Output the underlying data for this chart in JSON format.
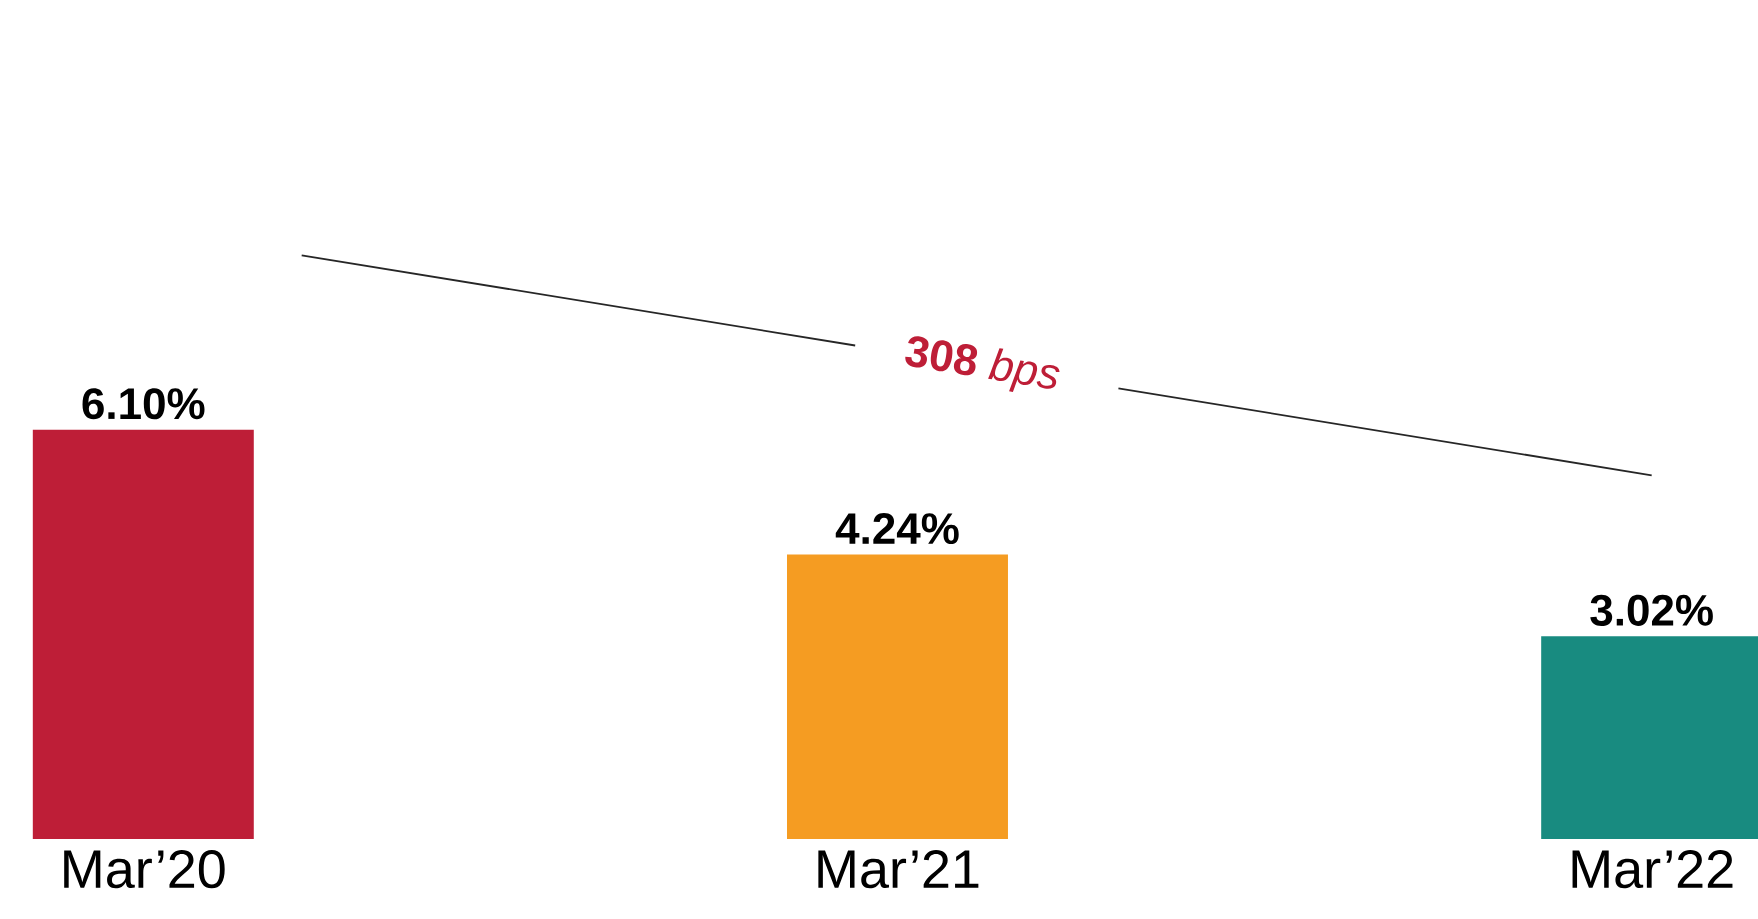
{
  "chart_data": {
    "type": "bar",
    "categories": [
      "Mar’20",
      "Mar’21",
      "Mar’22"
    ],
    "values": [
      6.1,
      4.24,
      3.02
    ],
    "value_labels": [
      "6.10%",
      "4.24%",
      "3.02%"
    ],
    "colors": [
      "#be1e37",
      "#f59c22",
      "#188b80"
    ],
    "annotations": [
      "**308** *bps*"
    ]
  }
}
